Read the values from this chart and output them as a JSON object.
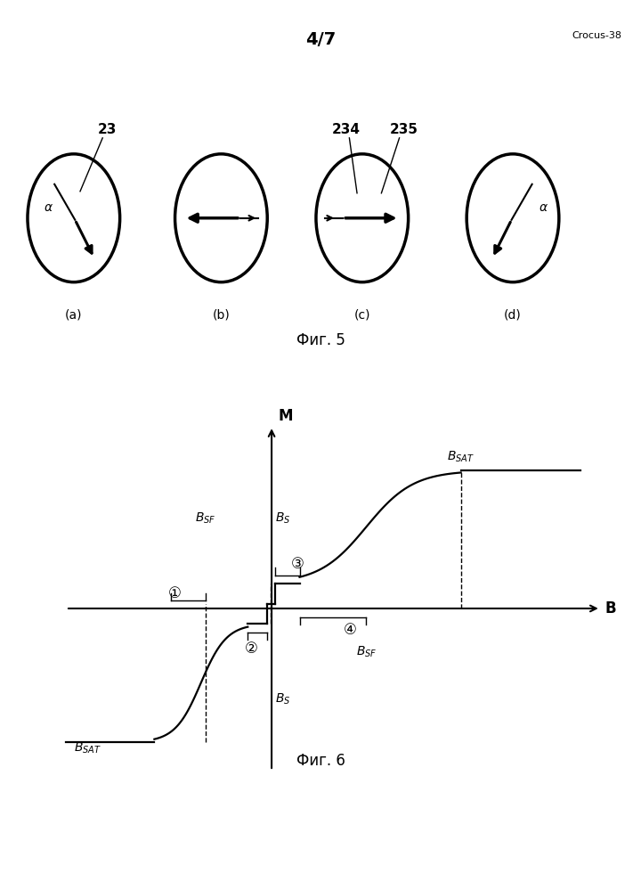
{
  "page_label": "4/7",
  "crocus_label": "Crocus-38",
  "fig5_label": "Фиг. 5",
  "fig6_label": "Фиг. 6",
  "sub_labels": [
    "(a)",
    "(b)",
    "(c)",
    "(d)"
  ],
  "background": "#ffffff",
  "line_color": "#000000",
  "circled": [
    "①",
    "②",
    "③",
    "④"
  ]
}
